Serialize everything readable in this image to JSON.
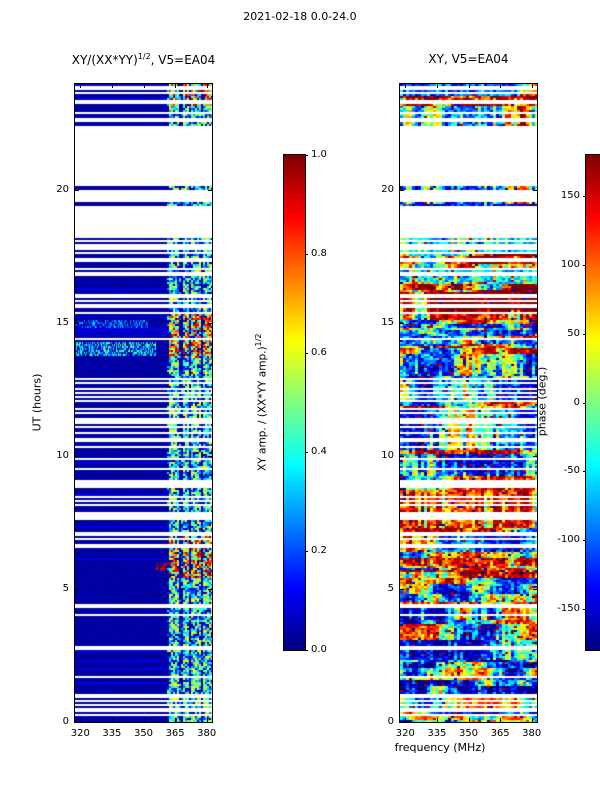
{
  "figure": {
    "title": "2021-02-18 0.0-24.0"
  },
  "chart_data": [
    {
      "type": "heatmap",
      "panel": "cross-correlation amplitude dynamic spectrum",
      "title_parts": {
        "prefix": "XY/(XX*YY)",
        "sup": "1/2",
        "suffix": ", V5=EA04"
      },
      "xlabel": "",
      "ylabel": "UT (hours)",
      "xlim": [
        317.5,
        382.5
      ],
      "ylim": [
        0,
        24
      ],
      "x_ticks": [
        "320",
        "335",
        "350",
        "365",
        "380"
      ],
      "y_ticks": [
        "0",
        "5",
        "10",
        "15",
        "20"
      ],
      "colormap": "jet",
      "colorbar": {
        "label_parts": {
          "prefix": "XY amp. / (XX*YY amp.)",
          "sup": "1/2"
        },
        "ticks": [
          "0.0",
          "0.2",
          "0.4",
          "0.6",
          "0.8",
          "1.0"
        ],
        "vmin": 0.0,
        "vmax": 1.0
      },
      "render": {
        "background_value": 0.03,
        "band_mhz": [
          361,
          382.5
        ],
        "band_columns": [
          [
            362,
            367
          ],
          [
            368.5,
            371.5
          ],
          [
            372.5,
            377
          ],
          [
            378,
            382.5
          ]
        ],
        "hot_intervals_ut": [
          [
            5.4,
            7.0
          ],
          [
            13.7,
            15.4
          ],
          [
            23.2,
            24.0
          ]
        ],
        "left_features": [
          {
            "ut": [
              13.75,
              14.3
            ],
            "f": [
              318,
              356
            ],
            "v": [
              0.15,
              0.5
            ]
          },
          {
            "ut": [
              14.85,
              15.15
            ],
            "f": [
              318,
              352
            ],
            "v": [
              0.1,
              0.35
            ]
          },
          {
            "ut": [
              5.75,
              6.05
            ],
            "f": [
              356,
              361
            ],
            "v": [
              0.85,
              1.0
            ]
          }
        ]
      }
    },
    {
      "type": "heatmap",
      "panel": "cross-correlation phase dynamic spectrum",
      "title": "XY, V5=EA04",
      "xlabel": "frequency (MHz)",
      "ylabel": "",
      "xlim": [
        317.5,
        382.5
      ],
      "ylim": [
        0,
        24
      ],
      "x_ticks": [
        "320",
        "335",
        "350",
        "365",
        "380"
      ],
      "y_ticks": [
        "0",
        "5",
        "10",
        "15",
        "20"
      ],
      "colormap": "jet",
      "colorbar": {
        "label": "phase (deg.)",
        "ticks": [
          "150",
          "100",
          "50",
          "0",
          "-50",
          "-100",
          "-150"
        ],
        "vmin": -180,
        "vmax": 180
      },
      "render": {
        "bias_intervals": [
          {
            "ut": [
              0,
              2.2
            ],
            "bias": 0.42
          },
          {
            "ut": [
              2.2,
              5.0
            ],
            "bias": 0.5
          },
          {
            "ut": [
              5.0,
              9.0
            ],
            "bias": 0.6
          },
          {
            "ut": [
              9.0,
              13.5
            ],
            "bias": 0.55
          },
          {
            "ut": [
              13.5,
              15.4
            ],
            "bias": 0.6
          },
          {
            "ut": [
              15.4,
              18.2
            ],
            "bias": 0.78
          },
          {
            "ut": [
              18.2,
              22.4
            ],
            "bias": 0.55
          },
          {
            "ut": [
              22.4,
              24.0
            ],
            "bias": 0.68
          }
        ]
      }
    }
  ],
  "gaps": {
    "seed": 20210218,
    "regions": [
      {
        "range": [
          0,
          0.25
        ],
        "p": 0
      },
      {
        "range": [
          0.25,
          1.1
        ],
        "p": 0.35
      },
      {
        "range": [
          1.1,
          2.4
        ],
        "p": 0.28
      },
      {
        "range": [
          2.4,
          5.4
        ],
        "p": 0.12
      },
      {
        "range": [
          5.4,
          6.3
        ],
        "p": 0.05
      },
      {
        "range": [
          6.3,
          7.6
        ],
        "p": 0.18
      },
      {
        "range": [
          7.6,
          8.9
        ],
        "p": 0.3
      },
      {
        "range": [
          8.9,
          9.1
        ],
        "p": 1
      },
      {
        "range": [
          9.1,
          11.25
        ],
        "p": 0.25
      },
      {
        "range": [
          11.25,
          11.45
        ],
        "p": 1
      },
      {
        "range": [
          11.45,
          13.6
        ],
        "p": 0.28
      },
      {
        "range": [
          13.6,
          15.45
        ],
        "p": 0.1
      },
      {
        "range": [
          15.45,
          18.2
        ],
        "p": 0.42
      },
      {
        "range": [
          18.2,
          19.42
        ],
        "p": 1
      },
      {
        "range": [
          19.42,
          19.55
        ],
        "p": 0
      },
      {
        "range": [
          19.55,
          20.02
        ],
        "p": 1
      },
      {
        "range": [
          20.02,
          20.14
        ],
        "p": 0
      },
      {
        "range": [
          20.14,
          22.42
        ],
        "p": 1
      },
      {
        "range": [
          22.42,
          22.56
        ],
        "p": 0
      },
      {
        "range": [
          22.56,
          22.72
        ],
        "p": 1
      },
      {
        "range": [
          22.72,
          23.24
        ],
        "p": 0.12
      },
      {
        "range": [
          23.24,
          23.38
        ],
        "p": 1
      },
      {
        "range": [
          23.38,
          24.01
        ],
        "p": 0.18
      }
    ]
  }
}
